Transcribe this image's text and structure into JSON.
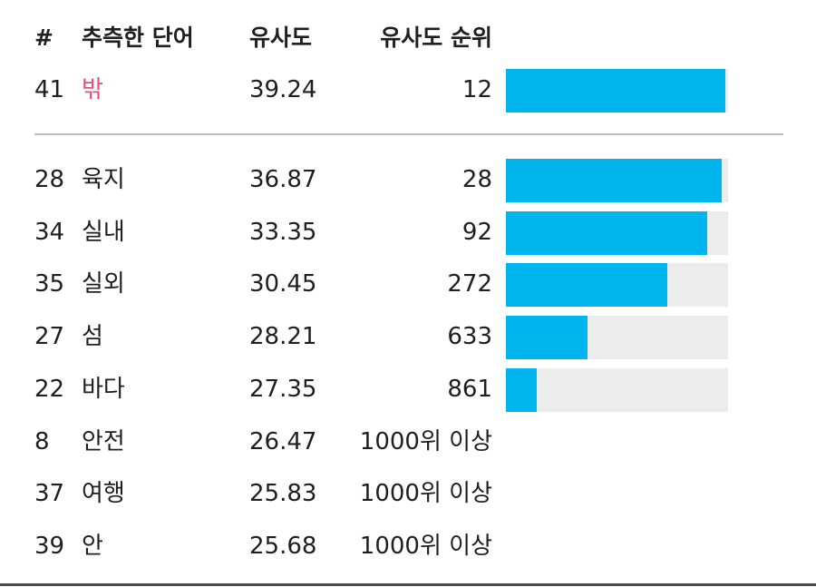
{
  "header": {
    "num": "#",
    "word": "추측한 단어",
    "similarity": "유사도",
    "rank": "유사도 순위"
  },
  "current_guess": {
    "num": "41",
    "word": "밖",
    "similarity": "39.24",
    "rank": "12",
    "proximity": 0.988
  },
  "guesses": [
    {
      "num": "28",
      "word": "육지",
      "similarity": "36.87",
      "rank": "28",
      "proximity": 0.972
    },
    {
      "num": "34",
      "word": "실내",
      "similarity": "33.35",
      "rank": "92",
      "proximity": 0.908
    },
    {
      "num": "35",
      "word": "실외",
      "similarity": "30.45",
      "rank": "272",
      "proximity": 0.728
    },
    {
      "num": "27",
      "word": "섬",
      "similarity": "28.21",
      "rank": "633",
      "proximity": 0.367
    },
    {
      "num": "22",
      "word": "바다",
      "similarity": "27.35",
      "rank": "861",
      "proximity": 0.139
    },
    {
      "num": "8",
      "word": "안전",
      "similarity": "26.47",
      "rank": "1000위 이상",
      "proximity": null
    },
    {
      "num": "37",
      "word": "여행",
      "similarity": "25.83",
      "rank": "1000위 이상",
      "proximity": null
    },
    {
      "num": "39",
      "word": "안",
      "similarity": "25.68",
      "rank": "1000위 이상",
      "proximity": null
    }
  ],
  "colors": {
    "bar_fill": "#00b4ee",
    "bar_track": "#ececec",
    "highlight_word": "#e0527a"
  }
}
